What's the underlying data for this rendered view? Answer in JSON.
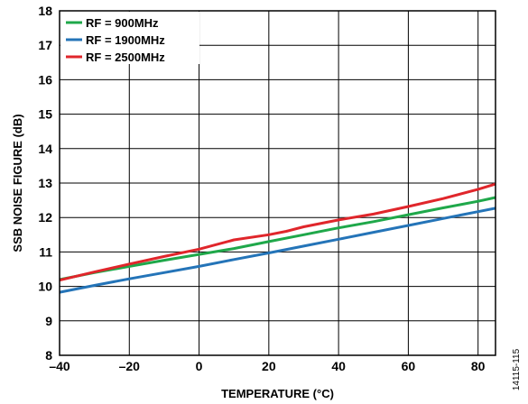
{
  "figure_id": "14115-115",
  "chart_data": {
    "type": "line",
    "title": "",
    "xlabel": "TEMPERATURE (°C)",
    "ylabel": "SSB NOISE FIGURE (dB)",
    "xlim": [
      -40,
      85
    ],
    "ylim": [
      8,
      18
    ],
    "x_ticks": [
      -40,
      -20,
      0,
      20,
      40,
      60,
      80
    ],
    "x_tick_labels": [
      "–40",
      "–20",
      "0",
      "20",
      "40",
      "60",
      "80"
    ],
    "y_ticks": [
      8,
      9,
      10,
      11,
      12,
      13,
      14,
      15,
      16,
      17,
      18
    ],
    "y_tick_labels": [
      "8",
      "9",
      "10",
      "11",
      "12",
      "13",
      "14",
      "15",
      "16",
      "17",
      "18"
    ],
    "grid": true,
    "legend_position": "top-left",
    "series": [
      {
        "name": "RF = 900MHz",
        "color": "#1fa84a",
        "x": [
          -40,
          -30,
          -20,
          -10,
          0,
          10,
          20,
          30,
          40,
          50,
          60,
          70,
          80,
          85
        ],
        "y": [
          10.2,
          10.4,
          10.58,
          10.76,
          10.93,
          11.1,
          11.3,
          11.5,
          11.7,
          11.88,
          12.08,
          12.28,
          12.47,
          12.58
        ]
      },
      {
        "name": "RF = 1900MHz",
        "color": "#2474b8",
        "x": [
          -40,
          -30,
          -20,
          -10,
          0,
          10,
          20,
          30,
          40,
          50,
          60,
          70,
          80,
          85
        ],
        "y": [
          9.83,
          10.03,
          10.22,
          10.4,
          10.58,
          10.78,
          10.97,
          11.17,
          11.37,
          11.57,
          11.77,
          11.97,
          12.17,
          12.27
        ]
      },
      {
        "name": "RF = 2500MHz",
        "color": "#e0262b",
        "x": [
          -40,
          -30,
          -20,
          -10,
          0,
          10,
          20,
          25,
          30,
          40,
          50,
          60,
          70,
          80,
          85
        ],
        "y": [
          10.18,
          10.42,
          10.65,
          10.87,
          11.08,
          11.35,
          11.5,
          11.6,
          11.73,
          11.93,
          12.1,
          12.32,
          12.55,
          12.82,
          12.97
        ]
      }
    ]
  }
}
